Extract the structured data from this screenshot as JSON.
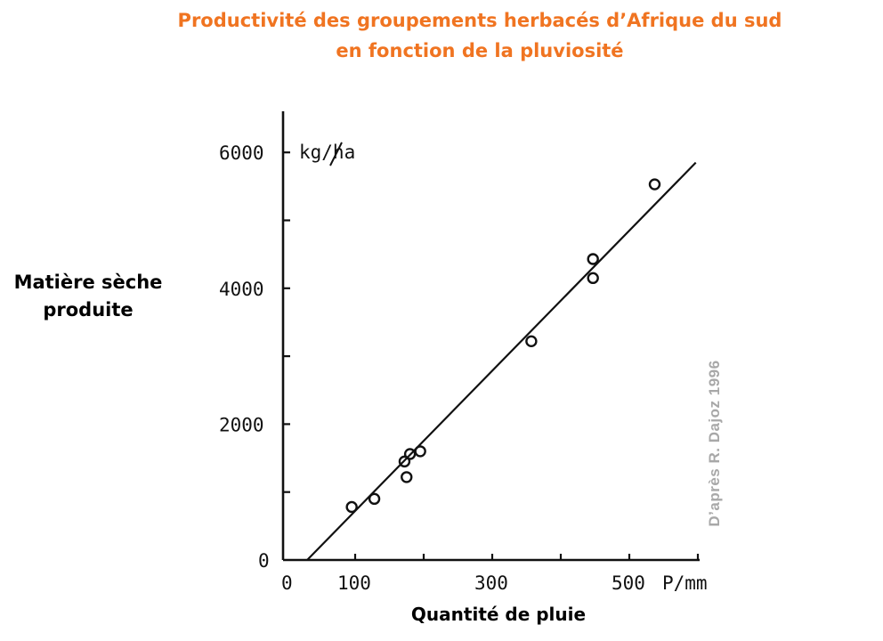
{
  "title_line1": "Productivité des groupements herbacés d’Afrique du sud",
  "title_line2": "en fonction de la pluviosité",
  "ylabel": "Matière sèche produite",
  "xlabel": "Quantité de pluie",
  "credit": "D’après R. Dajoz 1996",
  "colors": {
    "title": "#f07421",
    "credit": "#a8a8a8",
    "ink": "#111111"
  },
  "chart_data": {
    "type": "scatter",
    "x_unit": "P/mm",
    "y_unit": "kg/ha",
    "xlim": [
      0,
      600
    ],
    "ylim": [
      0,
      6000
    ],
    "x_ticks": [
      0,
      100,
      300,
      500
    ],
    "x_tick_labels": [
      "0",
      "100",
      "300",
      "500"
    ],
    "y_ticks": [
      0,
      2000,
      4000,
      6000
    ],
    "y_tick_labels": [
      "0",
      "2000",
      "4000",
      "6000"
    ],
    "grid": false,
    "points": [
      {
        "x": 95,
        "y": 780
      },
      {
        "x": 128,
        "y": 900
      },
      {
        "x": 172,
        "y": 1450
      },
      {
        "x": 175,
        "y": 1220
      },
      {
        "x": 180,
        "y": 1560
      },
      {
        "x": 195,
        "y": 1600
      },
      {
        "x": 357,
        "y": 3220
      },
      {
        "x": 447,
        "y": 4430
      },
      {
        "x": 447,
        "y": 4150
      },
      {
        "x": 537,
        "y": 5530
      }
    ],
    "fit_line": {
      "x": [
        30,
        597
      ],
      "y": [
        0,
        5850
      ]
    }
  }
}
